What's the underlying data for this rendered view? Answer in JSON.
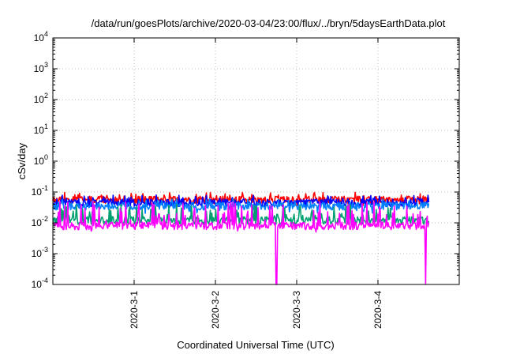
{
  "chart_data": {
    "type": "line",
    "title": "/data/run/goesPlots/archive/2020-03-04/23:00/flux/../bryn/5daysEarthData.plot",
    "xlabel": "Coordinated Universal Time (UTC)",
    "ylabel": "cSv/day",
    "y_scale": "log",
    "ylim": [
      0.0001,
      10000
    ],
    "y_ticks": [
      {
        "value": 10000,
        "base": "10",
        "exp": "4"
      },
      {
        "value": 1000,
        "base": "10",
        "exp": "3"
      },
      {
        "value": 100,
        "base": "10",
        "exp": "2"
      },
      {
        "value": 10,
        "base": "10",
        "exp": "1"
      },
      {
        "value": 1,
        "base": "10",
        "exp": "0"
      },
      {
        "value": 0.1,
        "base": "10",
        "exp": "-1"
      },
      {
        "value": 0.01,
        "base": "10",
        "exp": "-2"
      },
      {
        "value": 0.001,
        "base": "10",
        "exp": "-3"
      },
      {
        "value": 0.0001,
        "base": "10",
        "exp": "-4"
      }
    ],
    "xlim": [
      "2020-02-29T00:00",
      "2020-03-05T00:00"
    ],
    "x_ticks": [
      "2020-3-1",
      "2020-3-2",
      "2020-3-3",
      "2020-3-4"
    ],
    "grid": true,
    "legend": "none",
    "series": [
      {
        "color": "#ff0000",
        "x_range": [
          "2020-02-29T00:00",
          "2020-03-04T15:00"
        ],
        "typical": 0.055,
        "min": 0.035,
        "max": 0.1
      },
      {
        "color": "#0000ff",
        "x_range": [
          "2020-02-29T00:00",
          "2020-03-04T15:00"
        ],
        "typical": 0.045,
        "min": 0.03,
        "max": 0.08
      },
      {
        "color": "#0080ff",
        "x_range": [
          "2020-02-29T00:00",
          "2020-03-04T15:00"
        ],
        "typical": 0.035,
        "min": 0.02,
        "max": 0.06
      },
      {
        "color": "#00a070",
        "x_range": [
          "2020-02-29T00:00",
          "2020-03-04T15:00"
        ],
        "typical": 0.012,
        "min": 0.008,
        "max": 0.04
      },
      {
        "color": "#ff00ff",
        "x_range": [
          "2020-02-29T00:00",
          "2020-03-04T15:00"
        ],
        "typical": 0.008,
        "min": 0.005,
        "max": 0.05,
        "dropouts": [
          {
            "x": "2020-03-02T18:00",
            "min": 0.0001
          },
          {
            "x": "2020-03-04T14:00",
            "min": 0.0001
          }
        ]
      }
    ]
  }
}
